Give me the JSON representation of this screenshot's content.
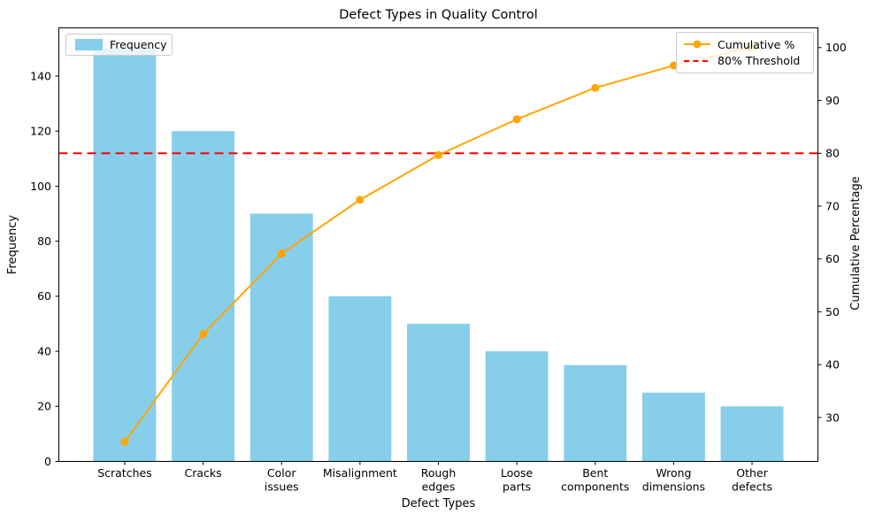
{
  "chart_data": {
    "type": "bar",
    "subtype": "pareto",
    "title": "Defect Types in Quality Control",
    "xlabel": "Defect Types",
    "ylabel_left": "Frequency",
    "ylabel_right": "Cumulative Percentage",
    "categories": [
      "Scratches",
      "Cracks",
      "Color issues",
      "Misalignment",
      "Rough edges",
      "Loose parts",
      "Bent components",
      "Wrong dimensions",
      "Other defects"
    ],
    "category_label_lines": [
      [
        "Scratches"
      ],
      [
        "Cracks"
      ],
      [
        "Color",
        "issues"
      ],
      [
        "Misalignment"
      ],
      [
        "Rough",
        "edges"
      ],
      [
        "Loose",
        "parts"
      ],
      [
        "Bent",
        "components"
      ],
      [
        "Wrong",
        "dimensions"
      ],
      [
        "Other",
        "defects"
      ]
    ],
    "series": [
      {
        "name": "Frequency",
        "type": "bar",
        "color": "#87CEEB",
        "values": [
          150,
          120,
          90,
          60,
          50,
          40,
          35,
          25,
          20
        ]
      },
      {
        "name": "Cumulative %",
        "type": "line",
        "color": "#FFA500",
        "axis": "right",
        "values": [
          25.42,
          45.76,
          61.02,
          71.19,
          79.66,
          86.44,
          92.37,
          96.61,
          100.0
        ]
      }
    ],
    "threshold": {
      "name": "80% Threshold",
      "value": 80,
      "color": "#FF0000",
      "style": "dashed",
      "axis": "right"
    },
    "axes": {
      "left": {
        "ticks": [
          0,
          20,
          40,
          60,
          80,
          100,
          120,
          140
        ],
        "lim": [
          0,
          157.5
        ]
      },
      "right": {
        "ticks": [
          30,
          40,
          50,
          60,
          70,
          80,
          90,
          100
        ],
        "lim": [
          21.69,
          103.73
        ]
      }
    },
    "legend_frequency_label": "Frequency",
    "legend_cumulative_label": "Cumulative %",
    "legend_threshold_label": "80% Threshold",
    "grid": false,
    "legend_positions": [
      "upper left",
      "upper right"
    ],
    "background": "#ffffff",
    "bar_count": 9
  }
}
